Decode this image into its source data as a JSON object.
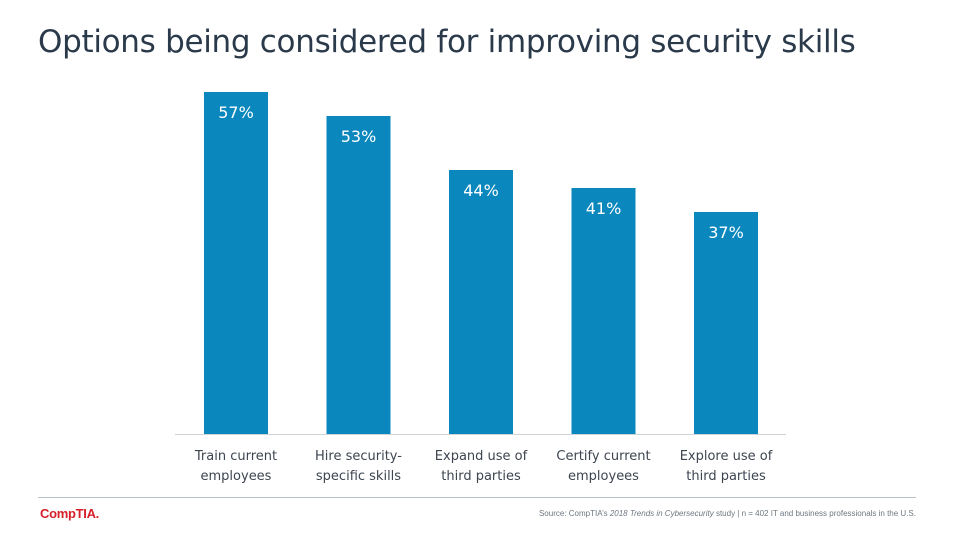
{
  "title": "Options being considered for improving security skills",
  "chart_data": {
    "type": "bar",
    "categories": [
      [
        "Train current",
        "employees"
      ],
      [
        "Hire security-",
        "specific skills"
      ],
      [
        "Expand use of",
        "third parties"
      ],
      [
        "Certify current",
        "employees"
      ],
      [
        "Explore use of",
        "third parties"
      ]
    ],
    "values": [
      57,
      53,
      44,
      41,
      37
    ],
    "value_labels": [
      "57%",
      "53%",
      "44%",
      "41%",
      "37%"
    ],
    "ylim": [
      0,
      60
    ],
    "bar_color": "#0a87bd",
    "grid": false
  },
  "footer": {
    "logo": "CompTIA.",
    "source_prefix": "Source: CompTIA’s ",
    "source_italic": "2018 Trends in Cybersecurity",
    "source_suffix": " study | n = 402 IT and business professionals in the U.S."
  }
}
